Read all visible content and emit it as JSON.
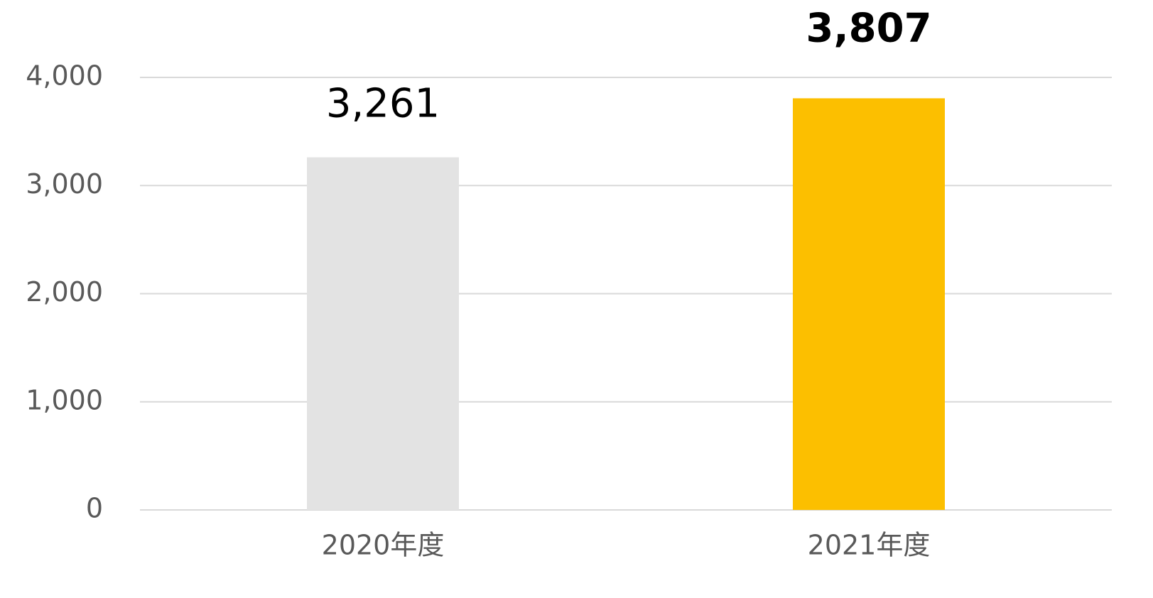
{
  "chart_data": {
    "type": "bar",
    "categories": [
      "2020年度",
      "2021年度"
    ],
    "values": [
      3261,
      3807
    ],
    "value_labels": [
      "3,261",
      "3,807"
    ],
    "value_label_bold": [
      false,
      true
    ],
    "colors": [
      "#e3e3e3",
      "#fcbf00"
    ],
    "ylim": [
      0,
      4000
    ],
    "yticks": [
      0,
      {
        "value": 1000,
        "label": "1,000"
      },
      {
        "value": 2000,
        "label": "2,000"
      },
      {
        "value": 3000,
        "label": "3,000"
      },
      {
        "value": 4000,
        "label": "4,000"
      }
    ],
    "grid": true
  }
}
